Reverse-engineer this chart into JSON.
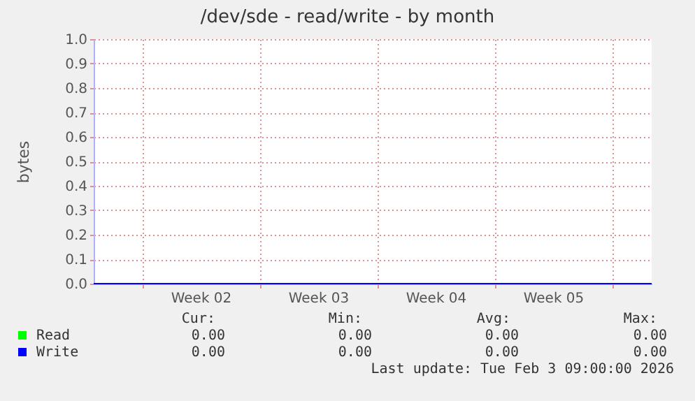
{
  "chart_data": {
    "type": "line",
    "title": "/dev/sde - read/write - by month",
    "ylabel": "bytes",
    "xlim": [
      "2026-01-02T03:00",
      "2026-02-04T09:00"
    ],
    "xticks": [
      {
        "value": "2026-01-05T00:00",
        "label": null
      },
      {
        "value": "2026-01-08T12:00",
        "label": "Week 02"
      },
      {
        "value": "2026-01-12T00:00",
        "label": null
      },
      {
        "value": "2026-01-15T12:00",
        "label": "Week 03"
      },
      {
        "value": "2026-01-19T00:00",
        "label": null
      },
      {
        "value": "2026-01-22T12:00",
        "label": "Week 04"
      },
      {
        "value": "2026-01-26T00:00",
        "label": null
      },
      {
        "value": "2026-01-29T12:00",
        "label": "Week 05"
      },
      {
        "value": "2026-02-02T00:00",
        "label": null
      }
    ],
    "ylim": [
      0,
      1
    ],
    "yticks": [
      {
        "value": 0,
        "label": "0.0"
      },
      {
        "value": 0.1,
        "label": "0.1"
      },
      {
        "value": 0.2,
        "label": "0.2"
      },
      {
        "value": 0.3,
        "label": "0.3"
      },
      {
        "value": 0.4,
        "label": "0.4"
      },
      {
        "value": 0.5,
        "label": "0.5"
      },
      {
        "value": 0.6,
        "label": "0.6"
      },
      {
        "value": 0.7,
        "label": "0.7"
      },
      {
        "value": 0.8,
        "label": "0.8"
      },
      {
        "value": 0.9,
        "label": "0.9"
      },
      {
        "value": 1,
        "label": "1.0"
      }
    ],
    "series": [
      {
        "name": "Read",
        "color": "#00ff00"
      },
      {
        "name": "Write",
        "color": "#0000ff",
        "x": [
          "2026-01-02T03:00",
          "2026-02-04T09:00"
        ],
        "values": [
          0,
          0
        ]
      }
    ],
    "annotations": [
      "Cur:",
      "Min:",
      "Avg:",
      "Max:",
      "0.00",
      "0.00",
      "0.00",
      "0.00",
      "0.00",
      "0.00",
      "0.00",
      "0.00",
      "Last update: Tue Feb  3 09:00:00 2026"
    ],
    "grid": true,
    "legend": "bottom left",
    "marker": "none",
    "line_style": "solid"
  }
}
